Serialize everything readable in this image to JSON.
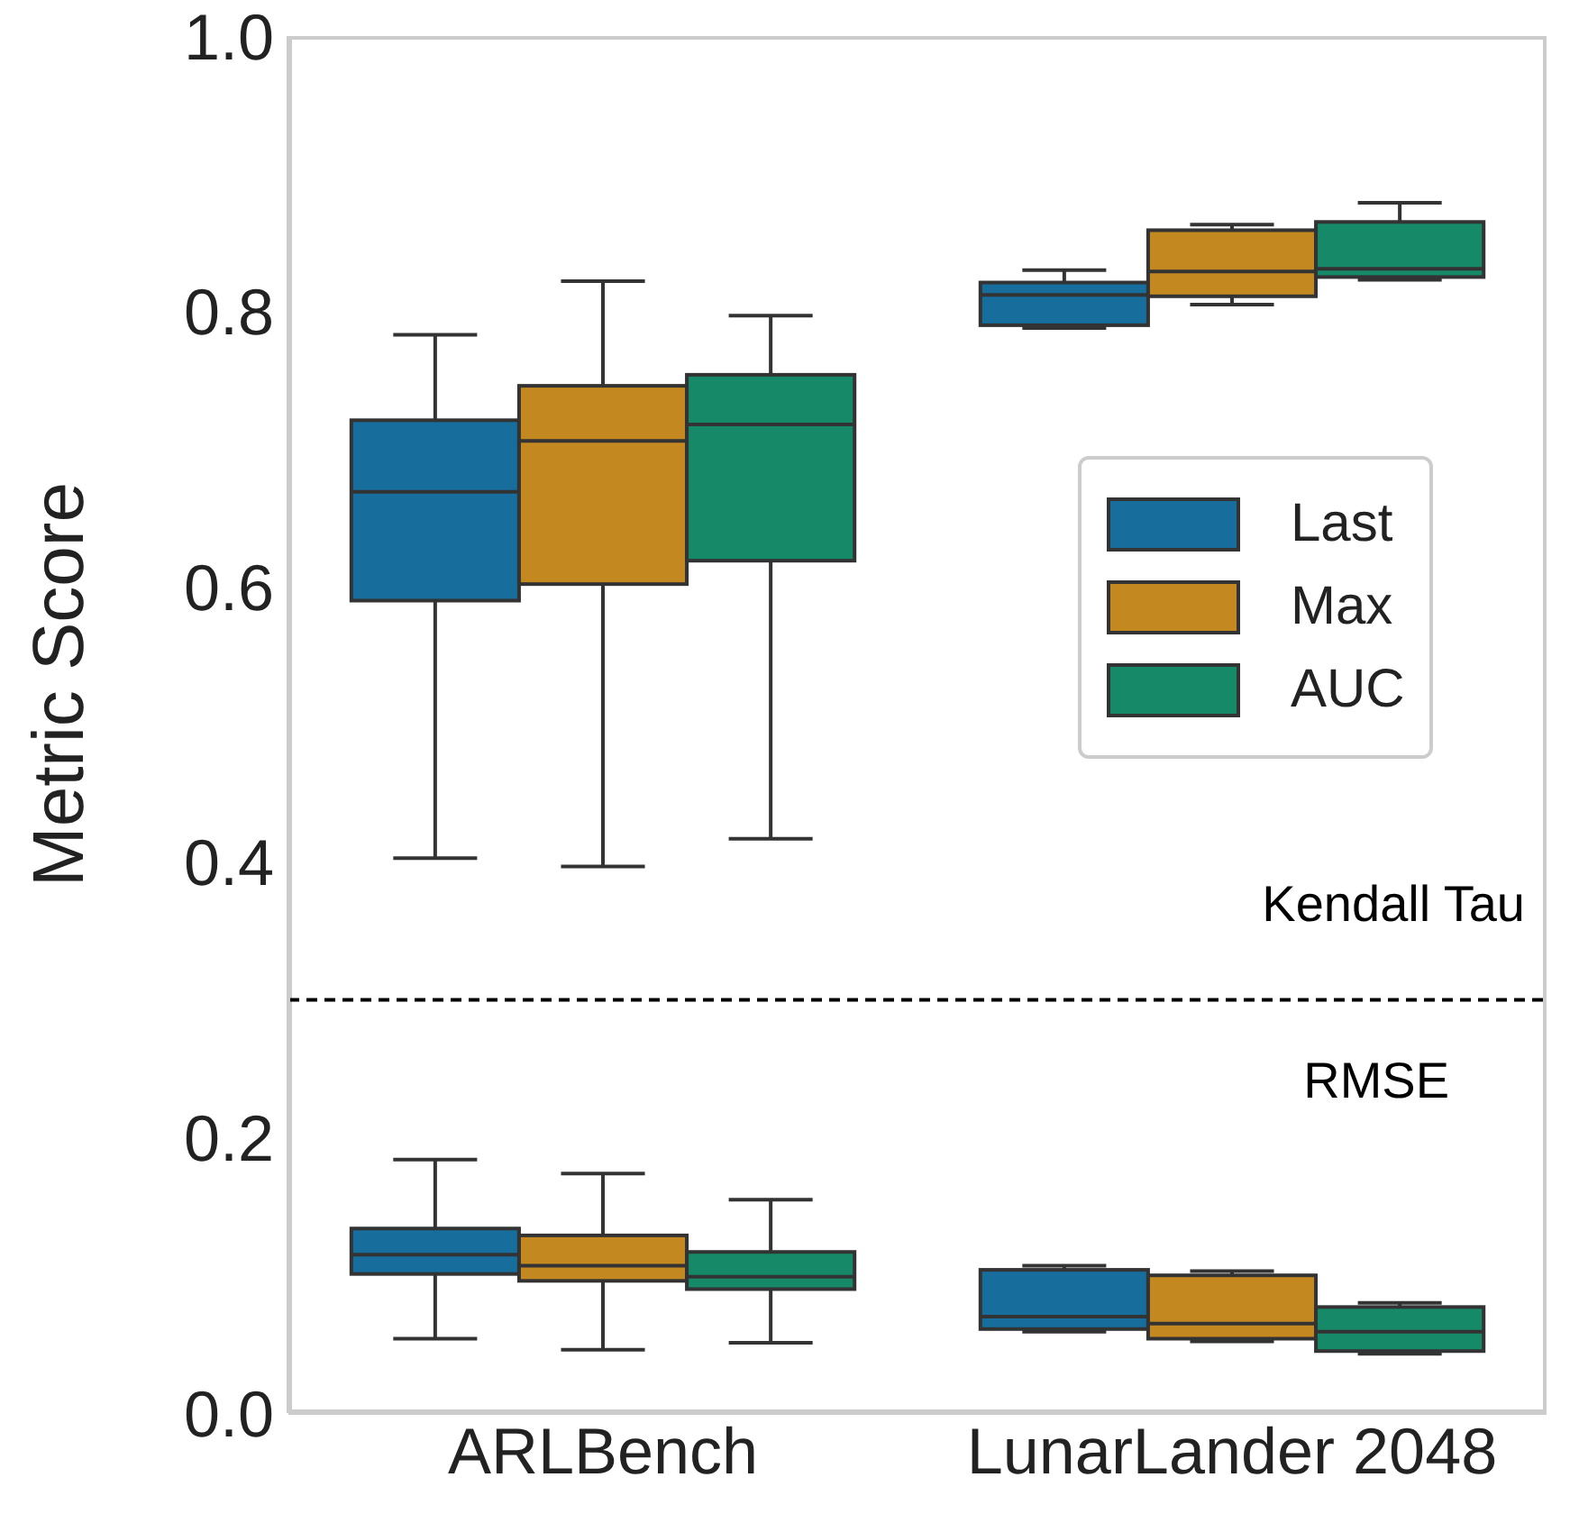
{
  "chart_data": {
    "type": "box",
    "ylabel": "Metric Score",
    "categories": [
      "ARLBench",
      "LunarLander 2048"
    ],
    "ylim": [
      0,
      1
    ],
    "yticks": [
      {
        "value": 0,
        "label": "0.0"
      },
      0.2,
      0.4,
      0.6,
      0.8,
      {
        "value": 1,
        "label": "1.0"
      }
    ],
    "grid": false,
    "legend": "right",
    "series": [
      {
        "name": "Last",
        "color": "#176d9c",
        "boxes": [
          {
            "low": 0.403,
            "q1": 0.59,
            "median": 0.669,
            "q3": 0.721,
            "high": 0.783
          },
          {
            "low": 0.788,
            "q1": 0.79,
            "median": 0.812,
            "q3": 0.821,
            "high": 0.83
          }
        ]
      },
      {
        "name": "Max",
        "color": "#c38820",
        "boxes": [
          {
            "low": 0.397,
            "q1": 0.602,
            "median": 0.706,
            "q3": 0.746,
            "high": 0.822
          },
          {
            "low": 0.805,
            "q1": 0.811,
            "median": 0.829,
            "q3": 0.859,
            "high": 0.863
          }
        ]
      },
      {
        "name": "AUC",
        "color": "#168a68",
        "boxes": [
          {
            "low": 0.417,
            "q1": 0.619,
            "median": 0.718,
            "q3": 0.754,
            "high": 0.797
          },
          {
            "low": 0.823,
            "q1": 0.825,
            "median": 0.831,
            "q3": 0.865,
            "high": 0.879
          }
        ]
      },
      {
        "color": "#176d9c",
        "boxes": [
          {
            "low": 0.054,
            "q1": 0.101,
            "median": 0.115,
            "q3": 0.134,
            "high": 0.184
          },
          {
            "low": 0.059,
            "q1": 0.061,
            "median": 0.07,
            "q3": 0.104,
            "high": 0.107
          }
        ]
      },
      {
        "color": "#c38820",
        "boxes": [
          {
            "low": 0.046,
            "q1": 0.096,
            "median": 0.107,
            "q3": 0.129,
            "high": 0.174
          },
          {
            "low": 0.052,
            "q1": 0.054,
            "median": 0.065,
            "q3": 0.1,
            "high": 0.103
          }
        ]
      },
      {
        "color": "#168a68",
        "boxes": [
          {
            "low": 0.051,
            "q1": 0.09,
            "median": 0.099,
            "q3": 0.117,
            "high": 0.155
          },
          {
            "low": 0.043,
            "q1": 0.045,
            "median": 0.059,
            "q3": 0.077,
            "high": 0.08
          }
        ]
      }
    ],
    "ref_lines": [
      {
        "axis": "y",
        "value": 0.3,
        "line_style": "dashed",
        "color": "#000000"
      }
    ],
    "annotations": [
      "Kendall Tau",
      "RMSE"
    ]
  }
}
